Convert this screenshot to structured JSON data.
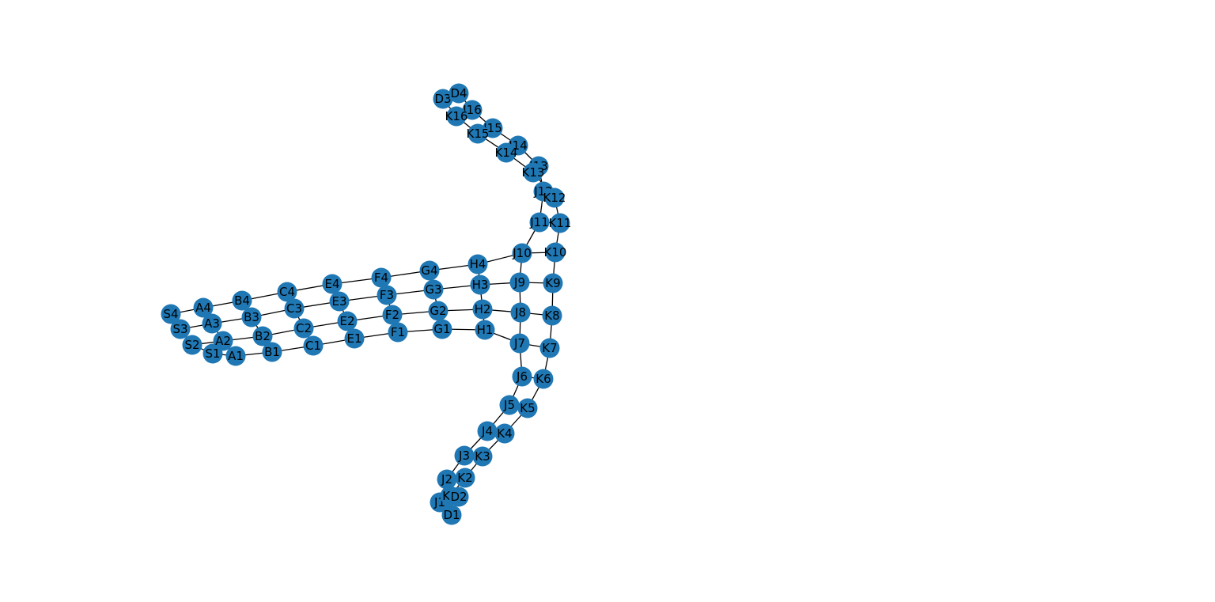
{
  "graph": {
    "node_color": "#1f77b4",
    "edge_color": "#000000",
    "label_color": "#000000",
    "nodes": [
      "S1",
      "S2",
      "S3",
      "S4",
      "A1",
      "A2",
      "A3",
      "A4",
      "B1",
      "B2",
      "B3",
      "B4",
      "C1",
      "C2",
      "C3",
      "C4",
      "E1",
      "E2",
      "E3",
      "E4",
      "F1",
      "F2",
      "F3",
      "F4",
      "G1",
      "G2",
      "G3",
      "G4",
      "H1",
      "H2",
      "H3",
      "H4",
      "J1",
      "J2",
      "J3",
      "J4",
      "J5",
      "J6",
      "J7",
      "J8",
      "J9",
      "J10",
      "J11",
      "J12",
      "J13",
      "J14",
      "J15",
      "J16",
      "K1",
      "K2",
      "K3",
      "K4",
      "K5",
      "K6",
      "K7",
      "K8",
      "K9",
      "K10",
      "K11",
      "K12",
      "K13",
      "K14",
      "K15",
      "K16",
      "D1",
      "D2",
      "D3",
      "D4"
    ],
    "edges": [
      [
        "S1",
        "S2"
      ],
      [
        "S2",
        "S3"
      ],
      [
        "S3",
        "S4"
      ],
      [
        "A1",
        "A2"
      ],
      [
        "A2",
        "A3"
      ],
      [
        "A3",
        "A4"
      ],
      [
        "B1",
        "B2"
      ],
      [
        "B2",
        "B3"
      ],
      [
        "B3",
        "B4"
      ],
      [
        "C1",
        "C2"
      ],
      [
        "C2",
        "C3"
      ],
      [
        "C3",
        "C4"
      ],
      [
        "E1",
        "E2"
      ],
      [
        "E2",
        "E3"
      ],
      [
        "E3",
        "E4"
      ],
      [
        "F1",
        "F2"
      ],
      [
        "F2",
        "F3"
      ],
      [
        "F3",
        "F4"
      ],
      [
        "G1",
        "G2"
      ],
      [
        "G2",
        "G3"
      ],
      [
        "G3",
        "G4"
      ],
      [
        "H1",
        "H2"
      ],
      [
        "H2",
        "H3"
      ],
      [
        "H3",
        "H4"
      ],
      [
        "S1",
        "A1"
      ],
      [
        "S2",
        "A2"
      ],
      [
        "S3",
        "A3"
      ],
      [
        "S4",
        "A4"
      ],
      [
        "A1",
        "B1"
      ],
      [
        "A2",
        "B2"
      ],
      [
        "A3",
        "B3"
      ],
      [
        "A4",
        "B4"
      ],
      [
        "B1",
        "C1"
      ],
      [
        "B2",
        "C2"
      ],
      [
        "B3",
        "C3"
      ],
      [
        "B4",
        "C4"
      ],
      [
        "C1",
        "E1"
      ],
      [
        "C2",
        "E2"
      ],
      [
        "C3",
        "E3"
      ],
      [
        "C4",
        "E4"
      ],
      [
        "E1",
        "F1"
      ],
      [
        "E2",
        "F2"
      ],
      [
        "E3",
        "F3"
      ],
      [
        "E4",
        "F4"
      ],
      [
        "F1",
        "G1"
      ],
      [
        "F2",
        "G2"
      ],
      [
        "F3",
        "G3"
      ],
      [
        "F4",
        "G4"
      ],
      [
        "G1",
        "H1"
      ],
      [
        "G2",
        "H2"
      ],
      [
        "G3",
        "H3"
      ],
      [
        "G4",
        "H4"
      ],
      [
        "H1",
        "J7"
      ],
      [
        "H2",
        "J8"
      ],
      [
        "H3",
        "J9"
      ],
      [
        "H4",
        "J10"
      ],
      [
        "J1",
        "J2"
      ],
      [
        "J2",
        "J3"
      ],
      [
        "J3",
        "J4"
      ],
      [
        "J4",
        "J5"
      ],
      [
        "J5",
        "J6"
      ],
      [
        "J6",
        "J7"
      ],
      [
        "J7",
        "J8"
      ],
      [
        "J8",
        "J9"
      ],
      [
        "J9",
        "J10"
      ],
      [
        "J10",
        "J11"
      ],
      [
        "J11",
        "J12"
      ],
      [
        "J12",
        "J13"
      ],
      [
        "J13",
        "J14"
      ],
      [
        "J14",
        "J15"
      ],
      [
        "J15",
        "J16"
      ],
      [
        "K1",
        "K2"
      ],
      [
        "K2",
        "K3"
      ],
      [
        "K3",
        "K4"
      ],
      [
        "K4",
        "K5"
      ],
      [
        "K5",
        "K6"
      ],
      [
        "K6",
        "K7"
      ],
      [
        "K7",
        "K8"
      ],
      [
        "K8",
        "K9"
      ],
      [
        "K9",
        "K10"
      ],
      [
        "K10",
        "K11"
      ],
      [
        "K11",
        "K12"
      ],
      [
        "K12",
        "K13"
      ],
      [
        "K13",
        "K14"
      ],
      [
        "K14",
        "K15"
      ],
      [
        "K15",
        "K16"
      ],
      [
        "J1",
        "K1"
      ],
      [
        "J2",
        "K2"
      ],
      [
        "J3",
        "K3"
      ],
      [
        "J4",
        "K4"
      ],
      [
        "J5",
        "K5"
      ],
      [
        "J6",
        "K6"
      ],
      [
        "J7",
        "K7"
      ],
      [
        "J8",
        "K8"
      ],
      [
        "J9",
        "K9"
      ],
      [
        "J10",
        "K10"
      ],
      [
        "J11",
        "K11"
      ],
      [
        "J12",
        "K12"
      ],
      [
        "J13",
        "K13"
      ],
      [
        "J14",
        "K14"
      ],
      [
        "J15",
        "K15"
      ],
      [
        "J16",
        "K16"
      ],
      [
        "J1",
        "D1"
      ],
      [
        "K1",
        "D2"
      ],
      [
        "J16",
        "D4"
      ],
      [
        "K16",
        "D3"
      ]
    ]
  }
}
